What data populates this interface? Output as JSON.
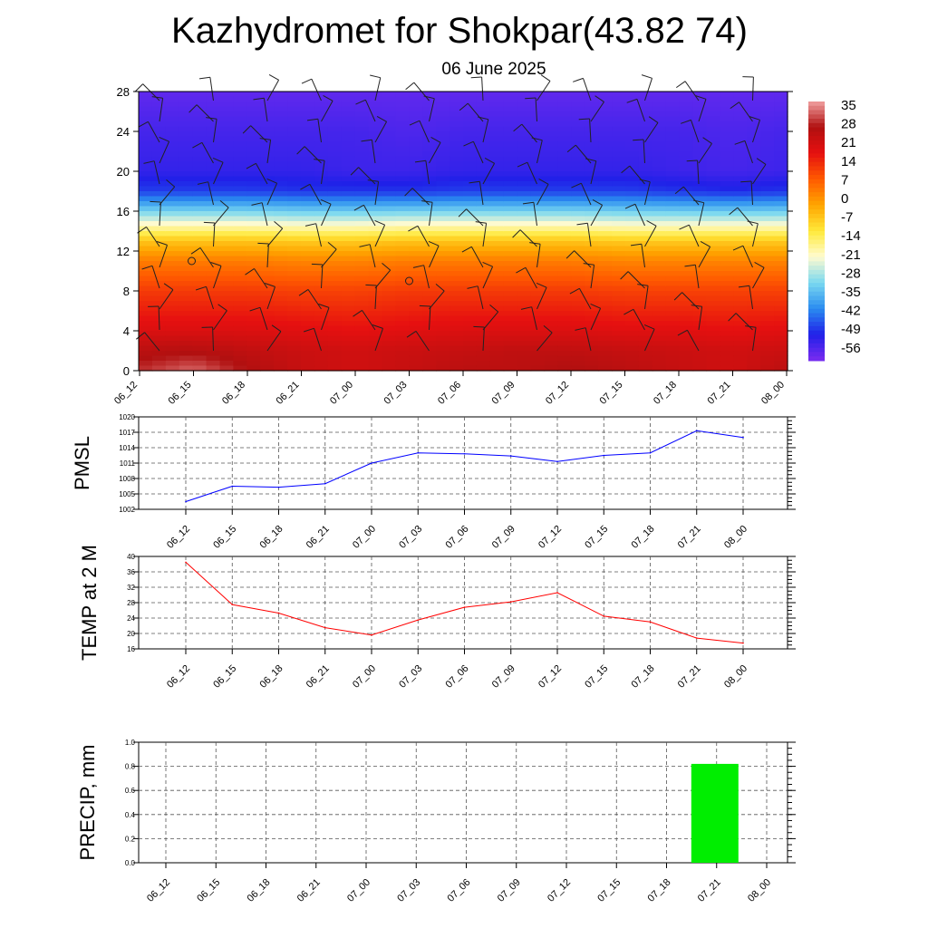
{
  "header": {
    "title": "Kazhydromet for Shokpar(43.82 74)",
    "subtitle": "06 June 2025"
  },
  "chart_data": [
    {
      "type": "heatmap",
      "title": "",
      "xlabel": "",
      "ylabel": "",
      "x": [
        "06_12",
        "06_15",
        "06_18",
        "06_21",
        "07_00",
        "07_03",
        "07_06",
        "07_09",
        "07_12",
        "07_15",
        "07_18",
        "07_21",
        "08_00"
      ],
      "yticks": [
        0,
        4,
        8,
        12,
        16,
        20,
        24,
        28
      ],
      "ylim": [
        0,
        28
      ],
      "colorbar_labels": [
        "35",
        "28",
        "21",
        "14",
        "7",
        "0",
        "-7",
        "-14",
        "-21",
        "-28",
        "-35",
        "-42",
        "-49",
        "-56"
      ],
      "colorbar_range": [
        -63,
        38
      ],
      "colors": [
        "#7b2cf0",
        "#2020e8",
        "#2a8cf0",
        "#7ad8f0",
        "#fffbd0",
        "#ffe93a",
        "#ffa500",
        "#ff5a00",
        "#e61010",
        "#b01010",
        "#f0a0a0"
      ],
      "values": [
        [
          30,
          34,
          28,
          24,
          22,
          24,
          26,
          26,
          28,
          26,
          24,
          22,
          26
        ],
        [
          26,
          27,
          25,
          23,
          22,
          23,
          24,
          25,
          25,
          24,
          23,
          22,
          23
        ],
        [
          20,
          20,
          20,
          19,
          18,
          19,
          20,
          20,
          20,
          19,
          19,
          18,
          19
        ],
        [
          12,
          12,
          12,
          11,
          11,
          12,
          12,
          12,
          12,
          11,
          11,
          11,
          11
        ],
        [
          3,
          3,
          3,
          2,
          2,
          3,
          3,
          3,
          3,
          2,
          2,
          2,
          2
        ],
        [
          -7,
          -7,
          -7,
          -8,
          -8,
          -7,
          -7,
          -7,
          -7,
          -8,
          -8,
          -8,
          -8
        ],
        [
          -25,
          -25,
          -25,
          -26,
          -26,
          -25,
          -25,
          -25,
          -25,
          -26,
          -26,
          -26,
          -26
        ],
        [
          -50,
          -50,
          -50,
          -51,
          -51,
          -51,
          -50,
          -50,
          -50,
          -50,
          -51,
          -52,
          -51
        ],
        [
          -55,
          -55,
          -55,
          -55,
          -56,
          -56,
          -55,
          -55,
          -55,
          -55,
          -56,
          -57,
          -56
        ],
        [
          -57,
          -57,
          -57,
          -57,
          -57,
          -58,
          -57,
          -57,
          -57,
          -57,
          -57,
          -58,
          -57
        ],
        [
          -60,
          -60,
          -60,
          -60,
          -60,
          -60,
          -60,
          -60,
          -60,
          -60,
          -60,
          -60,
          -60
        ]
      ],
      "y": [
        0,
        2,
        4,
        8,
        11,
        13,
        15,
        18,
        20,
        24,
        28
      ]
    },
    {
      "type": "line",
      "ylabel": "PMSL",
      "categories": [
        "06_12",
        "06_15",
        "06_18",
        "06_21",
        "07_00",
        "07_03",
        "07_06",
        "07_09",
        "07_12",
        "07_15",
        "07_18",
        "07_21",
        "08_00"
      ],
      "series": [
        {
          "values": [
            1003.5,
            1006.5,
            1006.3,
            1007.0,
            1011.0,
            1013.0,
            1012.8,
            1012.4,
            1011.3,
            1012.5,
            1013.0,
            1017.3,
            1016.0
          ]
        }
      ],
      "yticks": [
        "1002",
        "1005",
        "1008",
        "1011",
        "1014",
        "1017",
        "1020"
      ],
      "ylim": [
        1002,
        1020
      ],
      "color": "#0000ff"
    },
    {
      "type": "line",
      "ylabel": "TEMP at 2 M",
      "categories": [
        "06_12",
        "06_15",
        "06_18",
        "06_21",
        "07_00",
        "07_03",
        "07_06",
        "07_09",
        "07_12",
        "07_15",
        "07_18",
        "07_21",
        "08_00"
      ],
      "series": [
        {
          "values": [
            38.5,
            27.5,
            25.3,
            21.5,
            19.6,
            23.5,
            26.8,
            28.2,
            30.6,
            24.5,
            23.0,
            18.8,
            17.5
          ]
        }
      ],
      "yticks": [
        "16",
        "20",
        "24",
        "28",
        "32",
        "36",
        "40"
      ],
      "ylim": [
        16,
        40
      ],
      "color": "#ff0000"
    },
    {
      "type": "bar",
      "ylabel": "PRECIP, mm",
      "categories": [
        "06_12",
        "06_15",
        "06_18",
        "06_21",
        "07_00",
        "07_03",
        "07_06",
        "07_09",
        "07_12",
        "07_15",
        "07_18",
        "07_21",
        "08_00"
      ],
      "values": [
        0,
        0,
        0,
        0,
        0,
        0,
        0,
        0,
        0,
        0,
        0,
        0.82,
        0
      ],
      "yticks": [
        "0.0",
        "0.2",
        "0.4",
        "0.6",
        "0.8",
        "1.0"
      ],
      "ylim": [
        0,
        1
      ],
      "color": "#00ee00"
    }
  ]
}
